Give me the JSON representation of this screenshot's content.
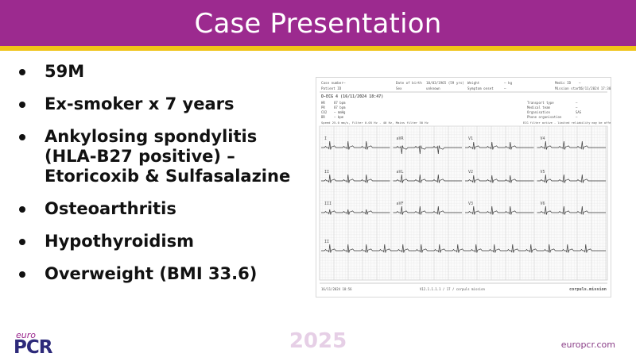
{
  "slide": {
    "title": "Case Presentation",
    "bullets": [
      "59M",
      "Ex-smoker x 7 years",
      "Ankylosing spondylitis (HLA-B27 positive) – Etoricoxib & Sulfasalazine",
      "Osteoarthritis",
      "Hypothyroidism",
      "Overweight (BMI 33.6)"
    ]
  },
  "ecg": {
    "header_rows": [
      [
        "Case number",
        "—",
        "Date of birth",
        "10/03/1965 (59 yrs)",
        "Weight",
        "— kg",
        "Medic ID",
        "—"
      ],
      [
        "Patient ID",
        "",
        "Sex",
        "unknown",
        "Symptom onset",
        "—",
        "Mission start",
        "16/11/2024 17:30"
      ]
    ],
    "title": "D-ECG 4 (16/11/2024 18:47)",
    "vitals": [
      [
        "HR",
        "87 bpm"
      ],
      [
        "PR",
        "87 bpm"
      ],
      [
        "CO2",
        "— mmHg"
      ],
      [
        "BR",
        "— bpm"
      ]
    ],
    "mid_labels": [
      "Transport type",
      "Medical team",
      "Organisation",
      "Phone organisation"
    ],
    "mid_values": [
      "—",
      "—",
      "SAS",
      "—"
    ],
    "lead_note": "Speed 25.0 mm/s, Filter 0.05 Hz - 40 Hz, Mains filter 50 Hz",
    "lead_note_right": "ECG filter active - limited reliability may be affected",
    "leads": [
      "I",
      "aVR",
      "V1",
      "V4",
      "II",
      "aVL",
      "V2",
      "V5",
      "III",
      "aVF",
      "V3",
      "V6"
    ],
    "rhythm_lead": "II",
    "footer_left": "16/11/2024 18:56",
    "footer_mid": "V12.1.1.1.1 / 17 / corpuls mission",
    "brand": "corpuls.mission"
  },
  "footer": {
    "logo_top": "euro",
    "logo_main": "PCR",
    "year": "2025",
    "site": "europcr.com"
  }
}
